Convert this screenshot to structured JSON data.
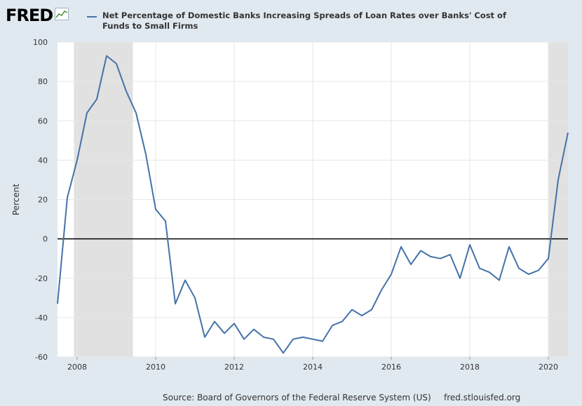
{
  "header": {
    "logo": "FRED",
    "logo_icon": "line-chart-icon",
    "series_title": "Net Percentage of Domestic Banks Increasing Spreads of Loan Rates over Banks' Cost of Funds to Small Firms"
  },
  "footer": {
    "source": "Source: Board of Governors of the Federal Reserve System (US)",
    "site": "fred.stlouisfed.org"
  },
  "colors": {
    "series": "#4572a7",
    "recession": "#e1e1e1",
    "zero_line": "#000000",
    "grid": "#e6e6e6"
  },
  "chart_data": {
    "type": "line",
    "title": "",
    "xlabel": "",
    "ylabel": "Percent",
    "xlim": [
      2007.5,
      2020.5
    ],
    "ylim": [
      -60,
      100
    ],
    "xticks": [
      2008,
      2010,
      2012,
      2014,
      2016,
      2018,
      2020
    ],
    "yticks": [
      -60,
      -40,
      -20,
      0,
      20,
      40,
      60,
      80,
      100
    ],
    "grid": true,
    "recessions": [
      [
        2007.92,
        2009.42
      ],
      [
        2020.0,
        2020.5
      ]
    ],
    "series": [
      {
        "name": "Net Percentage of Domestic Banks Increasing Spreads of Loan Rates over Banks' Cost of Funds to Small Firms",
        "x": [
          2007.5,
          2007.75,
          2008.0,
          2008.25,
          2008.5,
          2008.75,
          2009.0,
          2009.25,
          2009.5,
          2009.75,
          2010.0,
          2010.25,
          2010.5,
          2010.75,
          2011.0,
          2011.25,
          2011.5,
          2011.75,
          2012.0,
          2012.25,
          2012.5,
          2012.75,
          2013.0,
          2013.25,
          2013.5,
          2013.75,
          2014.0,
          2014.25,
          2014.5,
          2014.75,
          2015.0,
          2015.25,
          2015.5,
          2015.75,
          2016.0,
          2016.25,
          2016.5,
          2016.75,
          2017.0,
          2017.25,
          2017.5,
          2017.75,
          2018.0,
          2018.25,
          2018.5,
          2018.75,
          2019.0,
          2019.25,
          2019.5,
          2019.75,
          2020.0,
          2020.25,
          2020.5
        ],
        "y": [
          -33,
          21,
          40,
          64,
          71,
          93,
          89,
          75,
          64,
          43,
          15,
          9,
          -33,
          -21,
          -30,
          -50,
          -42,
          -48,
          -43,
          -51,
          -46,
          -50,
          -51,
          -58,
          -51,
          -50,
          -51,
          -52,
          -44,
          -42,
          -36,
          -39,
          -36,
          -26,
          -18,
          -4,
          -13,
          -6,
          -9,
          -10,
          -8,
          -20,
          -3,
          -15,
          -17,
          -21,
          -4,
          -15,
          -18,
          -16,
          -10,
          30,
          54
        ]
      }
    ]
  }
}
